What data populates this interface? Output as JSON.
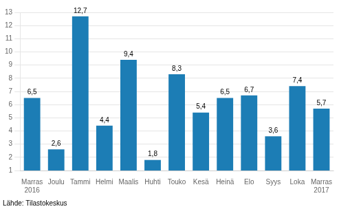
{
  "chart_data": {
    "type": "bar",
    "categories": [
      "Marras\n2016",
      "Joulu",
      "Tammi",
      "Helmi",
      "Maalis",
      "Huhti",
      "Touko",
      "Kesä",
      "Heinä",
      "Elo",
      "Syys",
      "Loka",
      "Marras\n2017"
    ],
    "values": [
      6.5,
      2.6,
      12.7,
      4.4,
      9.4,
      1.8,
      8.3,
      5.4,
      6.5,
      6.7,
      3.6,
      7.4,
      5.7
    ],
    "value_labels": [
      "6,5",
      "2,6",
      "12,7",
      "4,4",
      "9,4",
      "1,8",
      "8,3",
      "5,4",
      "6,5",
      "6,7",
      "3,6",
      "7,4",
      "5,7"
    ],
    "data_labels": true,
    "color": "#1c7db5",
    "ylim": [
      1,
      13
    ],
    "yticks": [
      1,
      2,
      3,
      4,
      5,
      6,
      7,
      8,
      9,
      10,
      11,
      12,
      13
    ],
    "grid": true,
    "annotations": [
      "Lähde: Tilastokeskus"
    ]
  }
}
